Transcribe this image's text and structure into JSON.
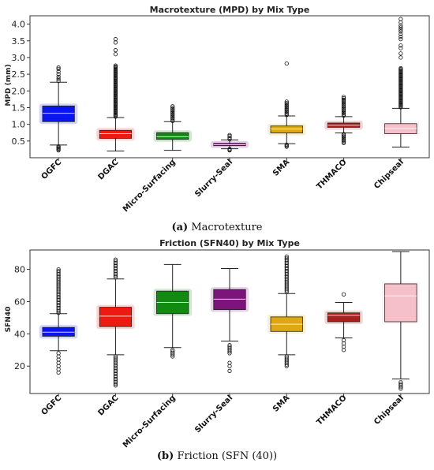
{
  "chart_data": [
    {
      "type": "box",
      "title": "Macrotexture (MPD) by Mix Type",
      "xlabel": "",
      "ylabel": "MPD (mm)",
      "ylim": [
        0.0,
        4.25
      ],
      "yticks": [
        "0.5",
        "1.0",
        "1.5",
        "2.0",
        "2.5",
        "3.0",
        "3.5",
        "4.0"
      ],
      "caption_label": "(a)",
      "caption_text": "Macrotexture",
      "categories": [
        "OGFC",
        "DGAC",
        "Micro-Surfacing",
        "Slurry-Seal",
        "SMA",
        "THMACO",
        "Chipseal"
      ],
      "boxes": [
        {
          "q1": 1.08,
          "median": 1.33,
          "q3": 1.55,
          "whisker_low": 0.38,
          "whisker_high": 2.26,
          "color": "#0a14ee",
          "outliers": [
            0.22,
            0.25,
            0.28,
            0.31,
            0.34,
            2.3,
            2.36,
            2.42,
            2.5,
            2.58,
            2.66,
            2.7
          ]
        },
        {
          "q1": 0.58,
          "median": 0.72,
          "q3": 0.82,
          "whisker_low": 0.2,
          "whisker_high": 1.2,
          "color": "#ee1a10",
          "outliers": [
            1.23,
            1.26,
            1.29,
            1.32,
            1.35,
            1.38,
            1.41,
            1.44,
            1.47,
            1.5,
            1.53,
            1.56,
            1.59,
            1.62,
            1.65,
            1.68,
            1.71,
            1.74,
            1.77,
            1.8,
            1.83,
            1.86,
            1.89,
            1.92,
            1.95,
            1.98,
            2.01,
            2.04,
            2.07,
            2.1,
            2.13,
            2.16,
            2.19,
            2.22,
            2.25,
            2.28,
            2.31,
            2.34,
            2.37,
            2.4,
            2.43,
            2.46,
            2.49,
            2.52,
            2.55,
            2.58,
            2.61,
            2.64,
            2.67,
            2.7,
            2.73,
            2.76,
            3.1,
            3.22,
            3.45,
            3.55
          ]
        },
        {
          "q1": 0.55,
          "median": 0.63,
          "q3": 0.75,
          "whisker_low": 0.22,
          "whisker_high": 1.08,
          "color": "#118a11",
          "outliers": [
            1.1,
            1.14,
            1.18,
            1.22,
            1.26,
            1.3,
            1.34,
            1.38,
            1.42,
            1.46,
            1.5,
            1.54
          ]
        },
        {
          "q1": 0.36,
          "median": 0.39,
          "q3": 0.43,
          "whisker_low": 0.27,
          "whisker_high": 0.53,
          "color": "#7b147b",
          "outliers": [
            0.22,
            0.24,
            0.26,
            0.55,
            0.6,
            0.65,
            0.68
          ]
        },
        {
          "q1": 0.74,
          "median": 0.86,
          "q3": 0.95,
          "whisker_low": 0.42,
          "whisker_high": 1.25,
          "color": "#e0a810",
          "outliers": [
            0.33,
            0.36,
            0.39,
            1.28,
            1.32,
            1.36,
            1.4,
            1.44,
            1.48,
            1.52,
            1.56,
            1.6,
            1.64,
            1.68,
            2.82
          ]
        },
        {
          "q1": 0.91,
          "median": 0.97,
          "q3": 1.04,
          "whisker_low": 0.74,
          "whisker_high": 1.23,
          "color": "#a8201c",
          "outliers": [
            0.44,
            0.48,
            0.52,
            0.56,
            0.6,
            0.64,
            0.68,
            0.71,
            1.26,
            1.3,
            1.34,
            1.38,
            1.42,
            1.46,
            1.5,
            1.54,
            1.58,
            1.62,
            1.66,
            1.7,
            1.74,
            1.78,
            1.82
          ]
        },
        {
          "q1": 0.72,
          "median": 0.88,
          "q3": 1.02,
          "whisker_low": 0.32,
          "whisker_high": 1.48,
          "color": "#f6c0cb",
          "outliers": [
            1.51,
            1.54,
            1.57,
            1.6,
            1.63,
            1.66,
            1.69,
            1.72,
            1.75,
            1.78,
            1.81,
            1.84,
            1.87,
            1.9,
            1.93,
            1.96,
            1.99,
            2.02,
            2.05,
            2.08,
            2.11,
            2.14,
            2.17,
            2.2,
            2.23,
            2.26,
            2.29,
            2.32,
            2.35,
            2.38,
            2.41,
            2.44,
            2.47,
            2.5,
            2.53,
            2.56,
            2.59,
            2.62,
            2.65,
            2.68,
            3.0,
            3.12,
            3.28,
            3.36,
            3.55,
            3.62,
            3.7,
            3.78,
            3.84,
            3.9,
            3.96,
            4.05,
            4.15
          ]
        }
      ]
    },
    {
      "type": "box",
      "title": "Friction (SFN40) by Mix Type",
      "xlabel": "",
      "ylabel": "SFN40",
      "ylim": [
        3,
        92
      ],
      "yticks": [
        "20",
        "40",
        "60",
        "80"
      ],
      "caption_label": "(b)",
      "caption_text": "Friction (SFN (40))",
      "categories": [
        "OGFC",
        "DGAC",
        "Micro-Surfacing",
        "Slurry-Seal",
        "SMA",
        "THMACO",
        "Chipseal"
      ],
      "boxes": [
        {
          "q1": 38.5,
          "median": 41,
          "q3": 44,
          "whisker_low": 29.5,
          "whisker_high": 52.5,
          "color": "#0a14ee",
          "outliers": [
            16,
            18,
            20,
            22,
            24,
            26,
            28,
            53,
            54,
            55,
            56,
            57,
            58,
            59,
            60,
            61,
            62,
            63,
            64,
            65,
            66,
            67,
            68,
            69,
            70,
            71,
            72,
            73,
            74,
            75,
            76,
            77,
            78,
            79,
            80
          ]
        },
        {
          "q1": 44.5,
          "median": 51,
          "q3": 56.5,
          "whisker_low": 27,
          "whisker_high": 74,
          "color": "#ee1a10",
          "outliers": [
            8,
            9,
            10,
            11,
            12,
            13,
            14,
            15,
            16,
            17,
            18,
            19,
            20,
            21,
            22,
            23,
            24,
            25,
            26,
            75,
            76,
            77,
            78,
            79,
            80,
            81,
            82,
            83,
            84,
            85,
            86
          ]
        },
        {
          "q1": 52.5,
          "median": 59.5,
          "q3": 66.5,
          "whisker_low": 31.5,
          "whisker_high": 83,
          "color": "#118a11",
          "outliers": [
            26,
            27,
            28,
            29,
            30
          ]
        },
        {
          "q1": 55,
          "median": 61.5,
          "q3": 67.5,
          "whisker_low": 35.5,
          "whisker_high": 80.5,
          "color": "#7b147b",
          "outliers": [
            17,
            20,
            22,
            28,
            29,
            30,
            31,
            32,
            33
          ]
        },
        {
          "q1": 41.5,
          "median": 46,
          "q3": 50.5,
          "whisker_low": 27,
          "whisker_high": 65,
          "color": "#e0a810",
          "outliers": [
            20,
            21,
            22,
            23,
            24,
            25,
            26,
            66,
            67,
            68,
            69,
            70,
            71,
            72,
            73,
            74,
            75,
            76,
            77,
            78,
            79,
            80,
            81,
            82,
            83,
            84,
            85,
            86,
            87,
            88
          ]
        },
        {
          "q1": 47.5,
          "median": 51.5,
          "q3": 53,
          "whisker_low": 37.5,
          "whisker_high": 59.5,
          "color": "#a8201c",
          "outliers": [
            30,
            32,
            34,
            36,
            64.5
          ]
        },
        {
          "q1": 47.5,
          "median": 63.5,
          "q3": 71,
          "whisker_low": 12,
          "whisker_high": 91,
          "color": "#f6c0cb",
          "outliers": [
            6,
            7,
            8,
            9,
            10
          ]
        }
      ]
    }
  ]
}
